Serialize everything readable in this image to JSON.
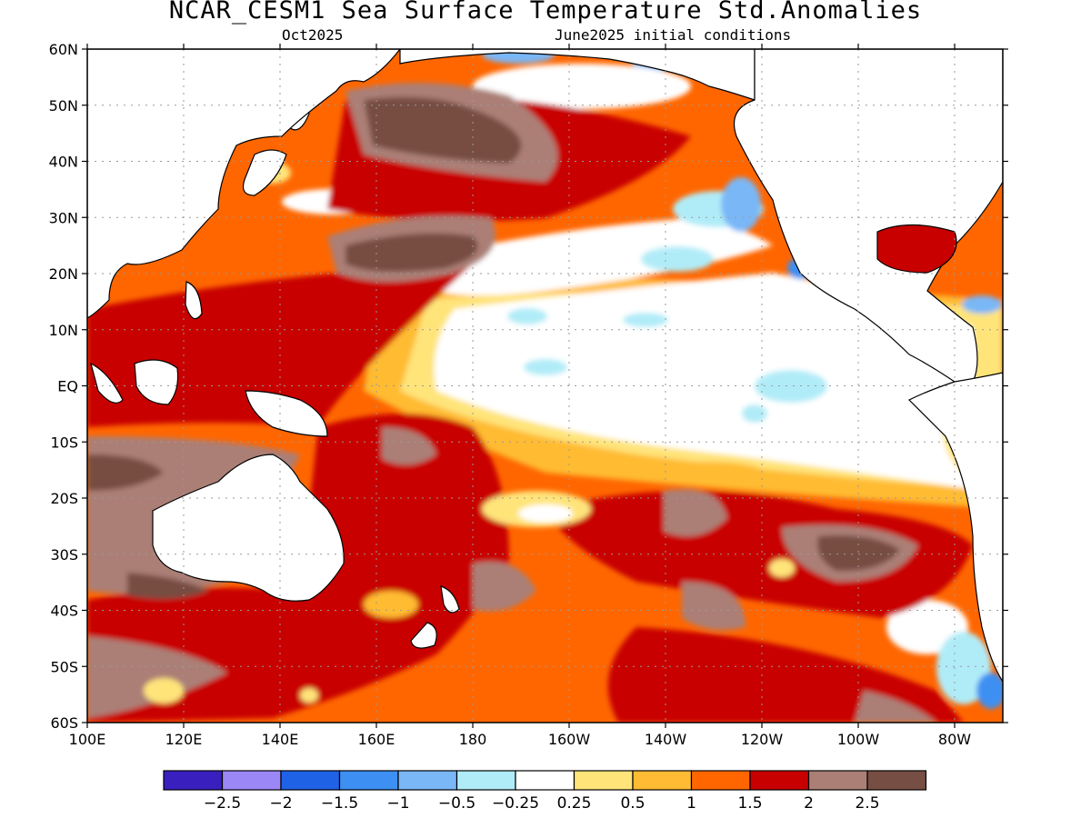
{
  "title": "NCAR_CESM1 Sea Surface Temperature Std.Anomalies",
  "subtitle_left": "Oct2025",
  "subtitle_right": "June2025 initial conditions",
  "lat_ticks": [
    "60N",
    "50N",
    "40N",
    "30N",
    "20N",
    "10N",
    "EQ",
    "10S",
    "20S",
    "30S",
    "40S",
    "50S",
    "60S"
  ],
  "lon_ticks": [
    "100E",
    "120E",
    "140E",
    "160E",
    "180",
    "160W",
    "140W",
    "120W",
    "100W",
    "80W"
  ],
  "colorbar": {
    "colors": [
      "#3a1fbf",
      "#9b87f5",
      "#1f62e6",
      "#3d8ff2",
      "#79b7f7",
      "#b0ecf8",
      "#ffffff",
      "#ffe47a",
      "#ffbb33",
      "#ff6600",
      "#c80000",
      "#ab7f76",
      "#774e43"
    ],
    "labels": [
      "-2.5",
      "-2",
      "-1.5",
      "-1",
      "-0.5",
      "-0.25",
      "0.25",
      "0.5",
      "1",
      "1.5",
      "2",
      "2.5"
    ]
  },
  "colors": {
    "land": "#ffffff",
    "coast": "#000000",
    "grid": "#9a9a9a"
  }
}
